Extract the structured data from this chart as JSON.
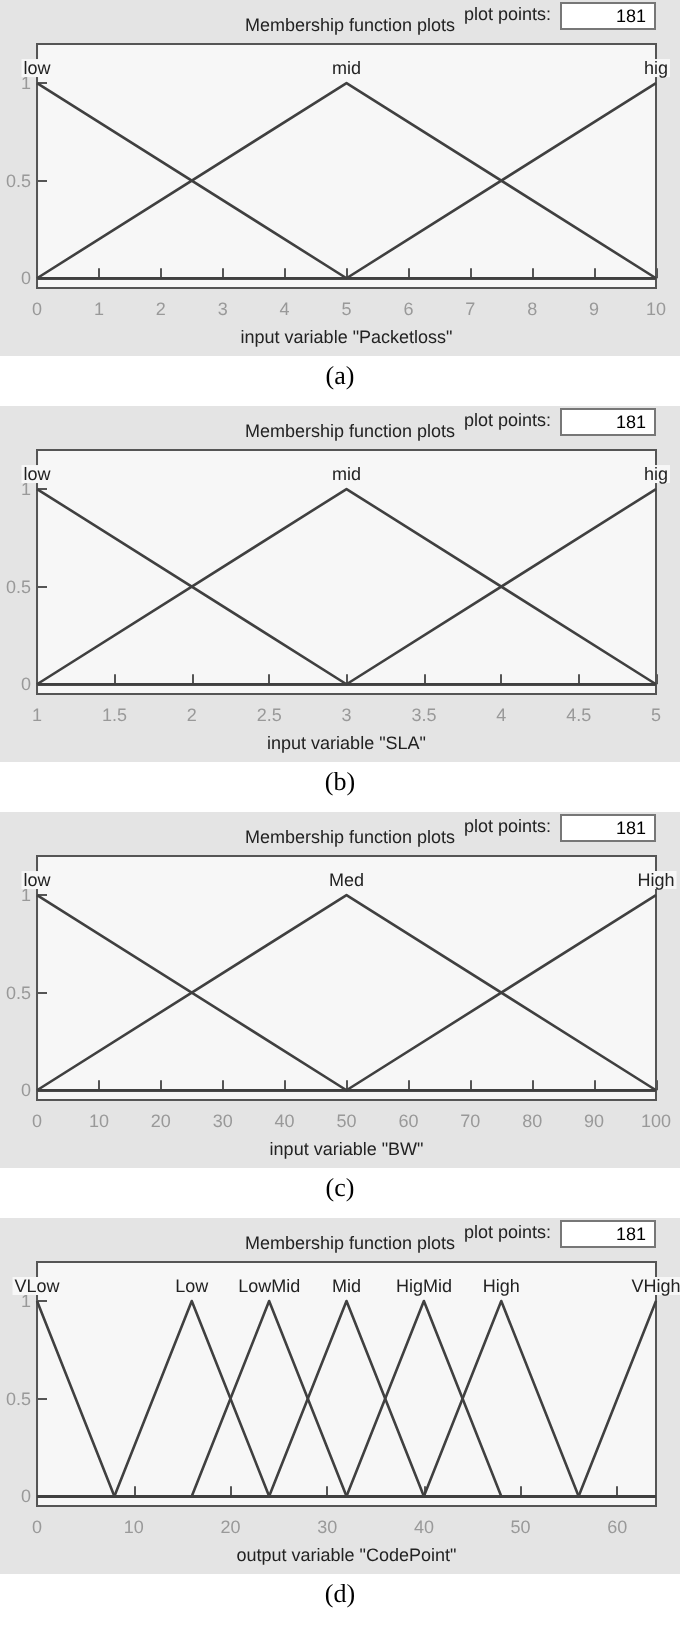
{
  "chart_data": [
    {
      "type": "line",
      "title": "Membership function plots",
      "xlabel": "input variable \"Packetloss\"",
      "annotations": [
        "plot points:",
        "181",
        "(a)"
      ],
      "marker": "none",
      "xlim": [
        0,
        10
      ],
      "xticks": [
        0,
        1,
        2,
        3,
        4,
        5,
        6,
        7,
        8,
        9,
        10
      ],
      "ylim": [
        -0.05,
        1.2
      ],
      "yticks": [
        0,
        0.5,
        1
      ],
      "series": [
        {
          "name": "low",
          "color": "#404040",
          "x": [
            0,
            5,
            10
          ],
          "values": [
            1,
            0,
            0
          ]
        },
        {
          "name": "mid",
          "color": "#404040",
          "x": [
            0,
            5,
            10
          ],
          "values": [
            0,
            1,
            0
          ]
        },
        {
          "name": "hig",
          "color": "#404040",
          "x": [
            0,
            5,
            10
          ],
          "values": [
            0,
            0,
            1
          ]
        }
      ]
    },
    {
      "type": "line",
      "title": "Membership function plots",
      "xlabel": "input variable \"SLA\"",
      "annotations": [
        "plot points:",
        "181",
        "(b)"
      ],
      "marker": "none",
      "xlim": [
        1,
        5
      ],
      "xticks": [
        1,
        1.5,
        2,
        2.5,
        3,
        3.5,
        4,
        4.5,
        5
      ],
      "ylim": [
        -0.05,
        1.2
      ],
      "yticks": [
        0,
        0.5,
        1
      ],
      "series": [
        {
          "name": "low",
          "color": "#404040",
          "x": [
            1,
            3,
            5
          ],
          "values": [
            1,
            0,
            0
          ]
        },
        {
          "name": "mid",
          "color": "#404040",
          "x": [
            1,
            3,
            5
          ],
          "values": [
            0,
            1,
            0
          ]
        },
        {
          "name": "hig",
          "color": "#404040",
          "x": [
            1,
            3,
            5
          ],
          "values": [
            0,
            0,
            1
          ]
        }
      ]
    },
    {
      "type": "line",
      "title": "Membership function plots",
      "xlabel": "input variable \"BW\"",
      "annotations": [
        "plot points:",
        "181",
        "(c)"
      ],
      "marker": "none",
      "xlim": [
        0,
        100
      ],
      "xticks": [
        0,
        10,
        20,
        30,
        40,
        50,
        60,
        70,
        80,
        90,
        100
      ],
      "ylim": [
        -0.05,
        1.2
      ],
      "yticks": [
        0,
        0.5,
        1
      ],
      "series": [
        {
          "name": "low",
          "color": "#404040",
          "x": [
            0,
            50,
            100
          ],
          "values": [
            1,
            0,
            0
          ]
        },
        {
          "name": "Med",
          "color": "#404040",
          "x": [
            0,
            50,
            100
          ],
          "values": [
            0,
            1,
            0
          ]
        },
        {
          "name": "High",
          "color": "#404040",
          "x": [
            0,
            50,
            100
          ],
          "values": [
            0,
            0,
            1
          ]
        }
      ]
    },
    {
      "type": "line",
      "title": "Membership function plots",
      "xlabel": "output variable \"CodePoint\"",
      "annotations": [
        "plot points:",
        "181",
        "(d)"
      ],
      "marker": "none",
      "xlim": [
        0,
        64
      ],
      "xticks": [
        0,
        10,
        20,
        30,
        40,
        50,
        60
      ],
      "ylim": [
        -0.05,
        1.2
      ],
      "yticks": [
        0,
        0.5,
        1
      ],
      "series": [
        {
          "name": "VLow",
          "color": "#404040",
          "x": [
            0,
            8,
            64
          ],
          "values": [
            1,
            0,
            0
          ]
        },
        {
          "name": "Low",
          "color": "#404040",
          "x": [
            0,
            8,
            16,
            24,
            64
          ],
          "values": [
            0,
            0,
            1,
            0,
            0
          ]
        },
        {
          "name": "LowMid",
          "color": "#404040",
          "x": [
            0,
            16,
            24,
            32,
            64
          ],
          "values": [
            0,
            0,
            1,
            0,
            0
          ]
        },
        {
          "name": "Mid",
          "color": "#404040",
          "x": [
            0,
            24,
            32,
            40,
            64
          ],
          "values": [
            0,
            0,
            1,
            0,
            0
          ]
        },
        {
          "name": "HigMid",
          "color": "#404040",
          "x": [
            0,
            32,
            40,
            48,
            64
          ],
          "values": [
            0,
            0,
            1,
            0,
            0
          ]
        },
        {
          "name": "High",
          "color": "#404040",
          "x": [
            0,
            40,
            48,
            56,
            64
          ],
          "values": [
            0,
            0,
            1,
            0,
            0
          ]
        },
        {
          "name": "VHigh",
          "color": "#404040",
          "x": [
            0,
            56,
            64
          ],
          "values": [
            0,
            0,
            1
          ]
        }
      ]
    }
  ]
}
